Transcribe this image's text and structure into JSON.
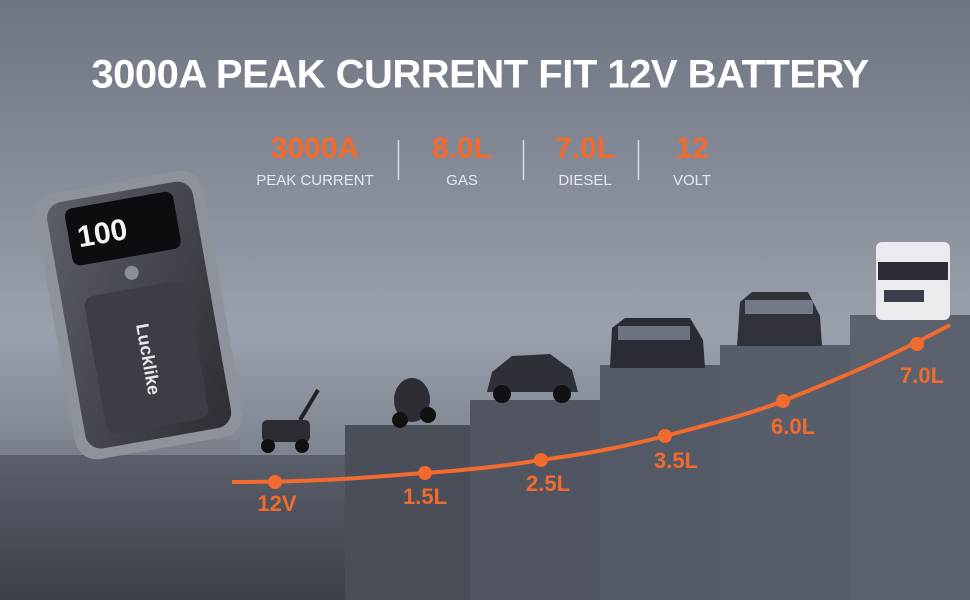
{
  "header": {
    "title": "3000A PEAK CURRENT FIT 12V BATTERY"
  },
  "specs": [
    {
      "value": "3000A",
      "label": "PEAK CURRENT"
    },
    {
      "value": "8.0L",
      "label": "GAS"
    },
    {
      "value": "7.0L",
      "label": "DIESEL"
    },
    {
      "value": "12",
      "label": "VOLT"
    }
  ],
  "device": {
    "display": "100",
    "brand": "Lucklike"
  },
  "steps": [
    "12V",
    "1.5L",
    "2.5L",
    "3.5L",
    "6.0L",
    "7.0L"
  ]
}
